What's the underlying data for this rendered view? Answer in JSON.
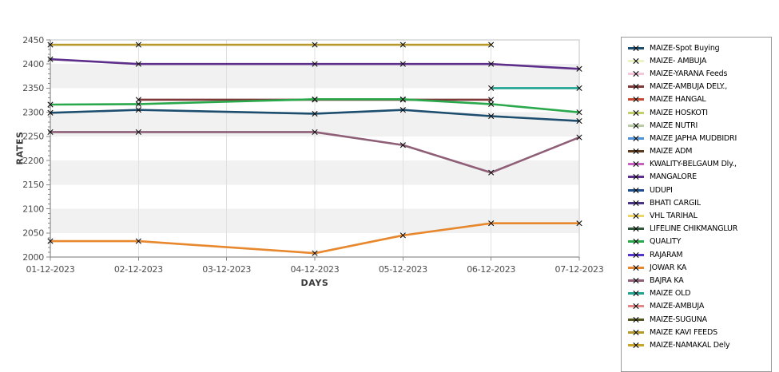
{
  "chart_data": {
    "type": "line",
    "title": "",
    "xlabel": "DAYS",
    "ylabel": "RATES",
    "x": [
      "01-12-2023",
      "02-12-2023",
      "03-12-2023",
      "04-12-2023",
      "05-12-2023",
      "06-12-2023",
      "07-12-2023"
    ],
    "ylim": [
      2000,
      2450
    ],
    "y_tick_step": 50,
    "y_minor_tick_step": 10,
    "grid": true,
    "legend_position": "right",
    "plot_band_colors": [
      "#ffffff",
      "#f1f1f1"
    ],
    "marker_style": "x",
    "marker_color": "#111111",
    "series": [
      {
        "name": "MAIZE KAVI FEEDS",
        "color": "#b5992a",
        "values": [
          2440,
          2440,
          null,
          2440,
          2440,
          2440,
          null
        ]
      },
      {
        "name": "MANGALORE",
        "color": "#5e2f8a",
        "values": [
          2410,
          2400,
          null,
          2400,
          2400,
          2400,
          2390
        ]
      },
      {
        "name": "MAIZE OLD",
        "color": "#1fa390",
        "values": [
          null,
          null,
          null,
          null,
          null,
          2350,
          2350
        ]
      },
      {
        "name": "MAIZE-AMBUJA DELY.,",
        "color": "#7e3939",
        "values": [
          null,
          2326,
          null,
          2326,
          2326,
          2326,
          null
        ]
      },
      {
        "name": "QUALITY",
        "color": "#2aa84c",
        "values": [
          2316,
          2317,
          null,
          2327,
          2327,
          2317,
          2300
        ]
      },
      {
        "name": "MAIZE-Spot Buying",
        "color": "#1d4e6e",
        "values": [
          2299,
          2305,
          null,
          2297,
          2305,
          2292,
          2282
        ]
      },
      {
        "name": "BAJRA KA",
        "color": "#8e5f76",
        "values": [
          2259,
          2259,
          null,
          2259,
          2232,
          2175,
          2248
        ]
      },
      {
        "name": "JOWAR KA",
        "color": "#e8882e",
        "values": [
          2033,
          2033,
          null,
          2008,
          2045,
          2070,
          2070
        ]
      }
    ],
    "legend": [
      {
        "label": "MAIZE-Spot Buying",
        "color": "#1d4e6e"
      },
      {
        "label": "MAIZE- AMBUJA",
        "color": "#edf2c5"
      },
      {
        "label": "MAIZE-YARANA Feeds",
        "color": "#f3c6da"
      },
      {
        "label": "MAIZE-AMBUJA DELY.,",
        "color": "#7e3939"
      },
      {
        "label": "MAIZE HANGAL",
        "color": "#c44a32"
      },
      {
        "label": "MAIZE HOSKOTI",
        "color": "#c3cf6b"
      },
      {
        "label": "MAIZE NUTRI",
        "color": "#b9cba4"
      },
      {
        "label": "MAIZE JAPHA MUDBIDRI",
        "color": "#4e92d5"
      },
      {
        "label": "MAIZE ADM",
        "color": "#5c3a1e"
      },
      {
        "label": "KWALITY-BELGAUM Dly.,",
        "color": "#c75fc3"
      },
      {
        "label": "MANGALORE",
        "color": "#5e2f8a"
      },
      {
        "label": "UDUPI",
        "color": "#1d4e89"
      },
      {
        "label": "BHATI CARGIL",
        "color": "#4a3585"
      },
      {
        "label": "VHL TARIHAL",
        "color": "#ecd566"
      },
      {
        "label": "LIFELINE CHIKMANGLUR",
        "color": "#33583d"
      },
      {
        "label": "QUALITY",
        "color": "#2aa84c"
      },
      {
        "label": "RAJARAM",
        "color": "#5434c8"
      },
      {
        "label": "JOWAR KA",
        "color": "#e8882e"
      },
      {
        "label": "BAJRA KA",
        "color": "#8e5f76"
      },
      {
        "label": "MAIZE OLD",
        "color": "#1fa390"
      },
      {
        "label": "MAIZE-AMBUJA",
        "color": "#e58789"
      },
      {
        "label": "MAIZE-SUGUNA",
        "color": "#54561f"
      },
      {
        "label": "MAIZE KAVI FEEDS",
        "color": "#b5992a"
      },
      {
        "label": "MAIZE-NAMAKAL Dely",
        "color": "#c9a52a"
      }
    ]
  }
}
